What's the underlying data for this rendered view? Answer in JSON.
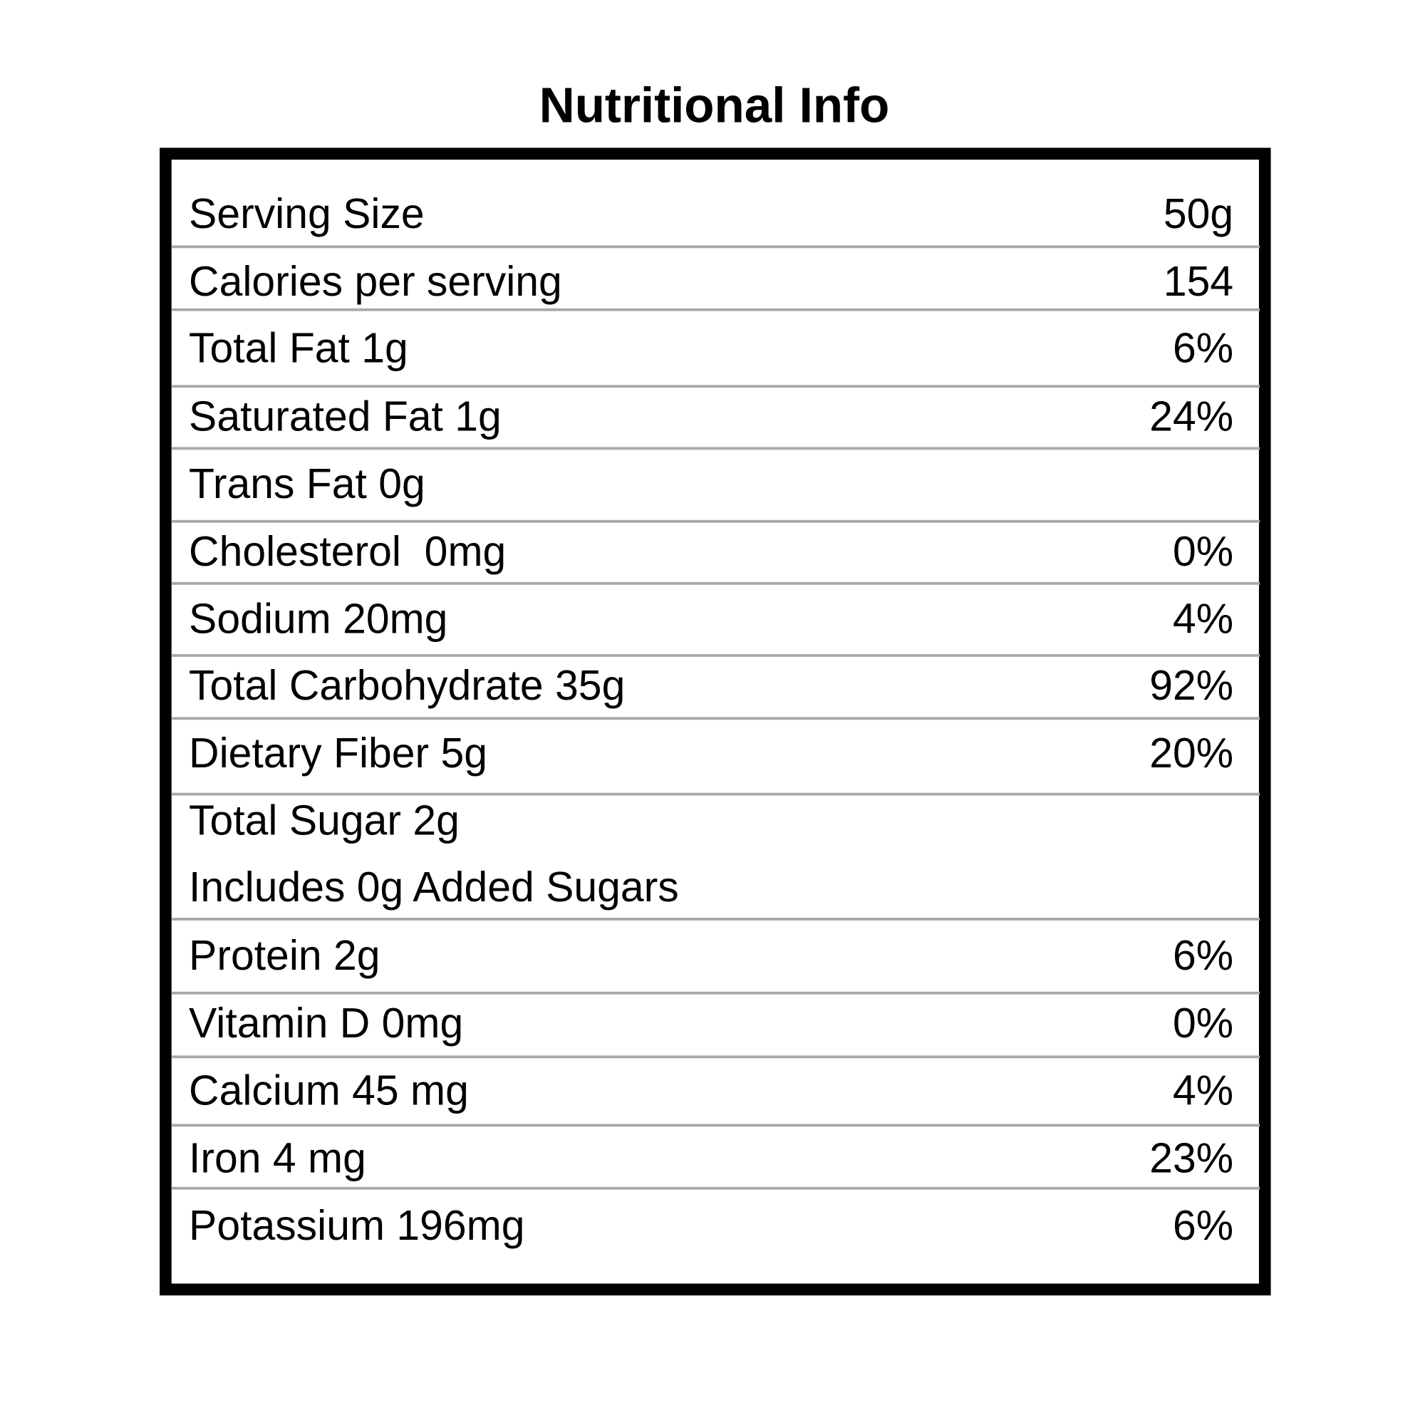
{
  "title": "Nutritional Info",
  "rows": [
    {
      "label": "Serving Size",
      "value": "50g"
    },
    {
      "label": "Calories per serving",
      "value": "154"
    },
    {
      "label": "Total Fat 1g",
      "value": "6%"
    },
    {
      "label": "Saturated Fat 1g",
      "value": "24%"
    },
    {
      "label": "Trans Fat 0g",
      "value": ""
    },
    {
      "label": "Cholesterol  0mg",
      "value": "0%"
    },
    {
      "label": "Sodium 20mg",
      "value": "4%"
    },
    {
      "label": "Total Carbohydrate 35g",
      "value": "92%"
    },
    {
      "label": "Dietary Fiber 5g",
      "value": "20%"
    },
    {
      "label": "Total Sugar 2g",
      "value": "",
      "sublabel": "Includes 0g Added Sugars"
    },
    {
      "label": "Protein 2g",
      "value": "6%"
    },
    {
      "label": "Vitamin D 0mg",
      "value": "0%"
    },
    {
      "label": "Calcium 45 mg",
      "value": "4%"
    },
    {
      "label": "Iron 4 mg",
      "value": "23%"
    },
    {
      "label": "Potassium 196mg",
      "value": "6%"
    }
  ]
}
